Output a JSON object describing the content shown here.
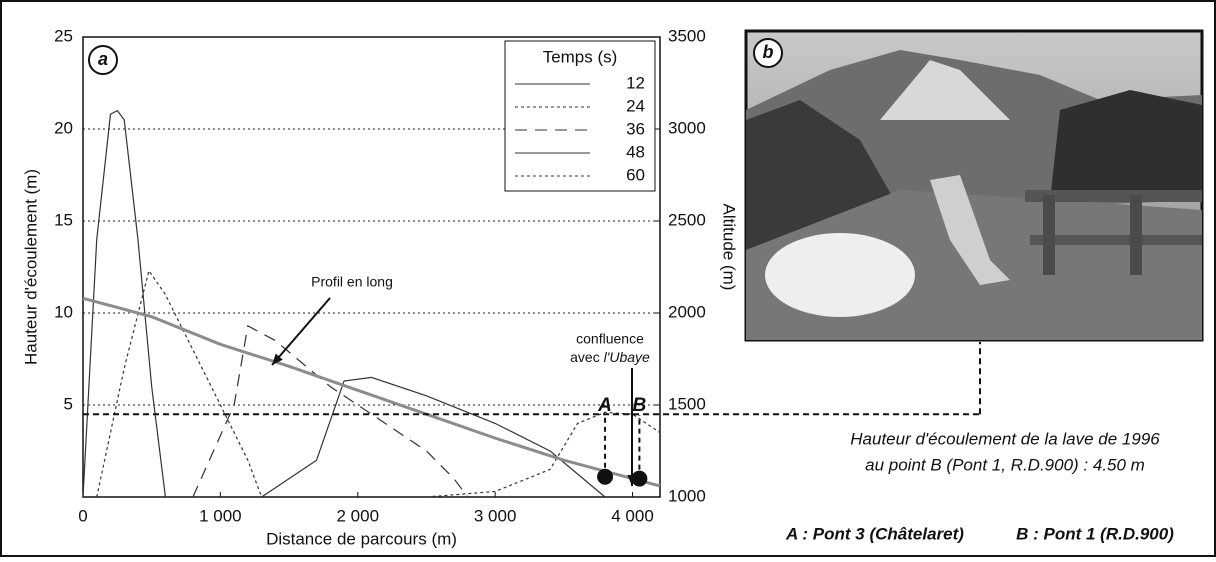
{
  "chart_data": {
    "type": "line",
    "panel_label": "a",
    "xlabel": "Distance de parcours (m)",
    "ylabel": "Hauteur d'écoulement (m)",
    "y2label": "Altitude (m)",
    "xlim": [
      0,
      4200
    ],
    "ylim": [
      0,
      25
    ],
    "y2lim": [
      1000,
      3500
    ],
    "xticks": [
      0,
      {
        "value": 1000,
        "label": "1 000"
      },
      {
        "value": 2000,
        "label": "2 000"
      },
      {
        "value": 3000,
        "label": "3 000"
      },
      {
        "value": 4000,
        "label": "4 000"
      }
    ],
    "yticks": [
      5,
      10,
      15,
      20,
      25
    ],
    "y2ticks": [
      1000,
      1500,
      2000,
      2500,
      3000,
      3500
    ],
    "grid": true,
    "legend_title": "Temps (s)",
    "series": [
      {
        "name": "12",
        "color": "#333333",
        "dash": "solid",
        "x": [
          0,
          100,
          200,
          250,
          300,
          400,
          500,
          600
        ],
        "values": [
          0,
          14,
          20.8,
          21,
          20.5,
          14,
          6,
          0
        ]
      },
      {
        "name": "24",
        "color": "#333333",
        "dash": "dotted",
        "x": [
          100,
          300,
          480,
          600,
          800,
          1000,
          1200,
          1300
        ],
        "values": [
          0,
          7,
          12.3,
          11,
          8,
          5,
          2,
          0
        ]
      },
      {
        "name": "36",
        "color": "#333333",
        "dash": "dashed",
        "x": [
          800,
          1100,
          1200,
          1400,
          1800,
          2200,
          2500,
          2700,
          2800
        ],
        "values": [
          0,
          5,
          9.3,
          8.5,
          6,
          4,
          2.5,
          1,
          0
        ]
      },
      {
        "name": "48",
        "color": "#333333",
        "dash": "solid",
        "x": [
          1300,
          1700,
          1900,
          2100,
          2500,
          3000,
          3400,
          3800
        ],
        "values": [
          0,
          2,
          6.3,
          6.5,
          5.5,
          4,
          2.5,
          0
        ]
      },
      {
        "name": "60",
        "color": "#333333",
        "dash": "dotted",
        "x": [
          2500,
          3000,
          3400,
          3600,
          3800,
          4000,
          4200
        ],
        "values": [
          0,
          0.3,
          1.5,
          4,
          4.6,
          4.5,
          3.5
        ]
      }
    ],
    "profile": {
      "name": "Profil en long",
      "color": "#8c8c8c",
      "axis": "y2",
      "x": [
        0,
        500,
        1000,
        1500,
        2000,
        2500,
        3000,
        3500,
        4000,
        4200
      ],
      "values": [
        2080,
        1980,
        1830,
        1710,
        1580,
        1450,
        1320,
        1200,
        1100,
        1060
      ]
    },
    "points": [
      {
        "label": "A",
        "x": 3800,
        "y": 1.1
      },
      {
        "label": "B",
        "x": 4050,
        "y": 1.0
      }
    ],
    "reference_line": {
      "value": 4.5
    },
    "confluence_label": [
      "confluence",
      "avec",
      "l'Ubaye"
    ]
  },
  "photo": {
    "panel_label": "b"
  },
  "caption": {
    "line1": "Hauteur d'écoulement de la lave de 1996",
    "line2": "au point B (Pont 1, R.D.900) : 4.50 m",
    "legend_a": "A : Pont 3 (Châtelaret)",
    "legend_b": "B : Pont 1 (R.D.900)"
  }
}
